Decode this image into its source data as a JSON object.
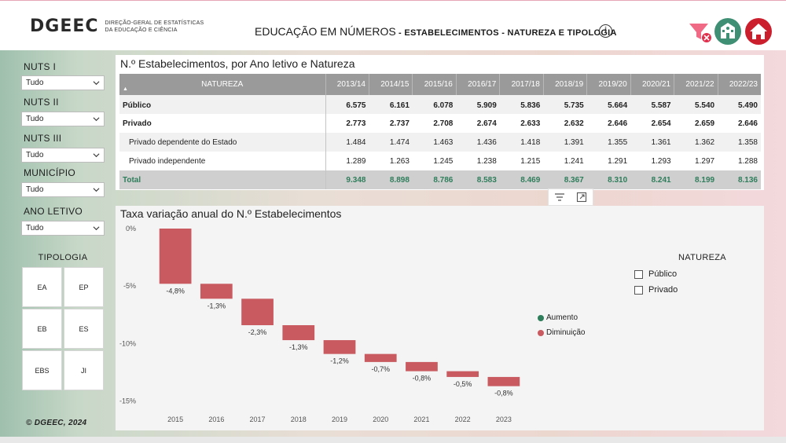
{
  "header": {
    "logo_mark": "DGEEC",
    "logo_line1": "DIREÇÃO-GERAL DE ESTATÍSTICAS",
    "logo_line2": "DA EDUCAÇÃO E CIÊNCIA",
    "title_main": "EDUCAÇÃO EM NÚMEROS",
    "title_sub": " - ESTABELECIMENTOS - NATUREZA  E TIPOLOGIA",
    "info_glyph": "i",
    "icons": [
      "filter-clear-icon",
      "school-icon",
      "home-icon"
    ]
  },
  "filters": [
    {
      "label": "NUTS I",
      "value": "Tudo"
    },
    {
      "label": "NUTS II",
      "value": "Tudo"
    },
    {
      "label": "NUTS III",
      "value": "Tudo"
    },
    {
      "label": "MUNICÍPIO",
      "value": "Tudo"
    },
    {
      "label": "ANO LETIVO",
      "value": "Tudo"
    }
  ],
  "tipologia": {
    "title": "TIPOLOGIA",
    "buttons": [
      "EA",
      "EP",
      "EB",
      "ES",
      "EBS",
      "JI"
    ]
  },
  "copyright": "© DGEEC, 2024",
  "table": {
    "title": "N.º Estabelecimentos, por Ano letivo e Natureza",
    "natureza_header": "NATUREZA",
    "sort_glyph": "▲",
    "years": [
      "2013/14",
      "2014/15",
      "2015/16",
      "2016/17",
      "2017/18",
      "2018/19",
      "2019/20",
      "2020/21",
      "2021/22",
      "2022/23"
    ],
    "rows": [
      {
        "label": "Público",
        "values": [
          "6.575",
          "6.161",
          "6.078",
          "5.909",
          "5.836",
          "5.735",
          "5.664",
          "5.587",
          "5.540",
          "5.490"
        ]
      },
      {
        "label": "Privado",
        "values": [
          "2.773",
          "2.737",
          "2.708",
          "2.674",
          "2.633",
          "2.632",
          "2.646",
          "2.654",
          "2.659",
          "2.646"
        ]
      },
      {
        "label": "Privado dependente do Estado",
        "values": [
          "1.484",
          "1.474",
          "1.463",
          "1.436",
          "1.418",
          "1.391",
          "1.355",
          "1.361",
          "1.362",
          "1.358"
        ]
      },
      {
        "label": "Privado independente",
        "values": [
          "1.289",
          "1.263",
          "1.245",
          "1.238",
          "1.215",
          "1.241",
          "1.291",
          "1.293",
          "1.297",
          "1.288"
        ]
      },
      {
        "label": "Total",
        "values": [
          "9.348",
          "8.898",
          "8.786",
          "8.583",
          "8.469",
          "8.367",
          "8.310",
          "8.241",
          "8.199",
          "8.136"
        ]
      }
    ]
  },
  "chart_data": {
    "type": "waterfall",
    "title": "Taxa variação anual do N.º Estabelecimentos",
    "categories": [
      "2015",
      "2016",
      "2017",
      "2018",
      "2019",
      "2020",
      "2021",
      "2022",
      "2023"
    ],
    "values": [
      -4.8,
      -1.3,
      -2.3,
      -1.3,
      -1.2,
      -0.7,
      -0.8,
      -0.5,
      -0.8
    ],
    "labels": [
      "-4,8%",
      "-1,3%",
      "-2,3%",
      "-1,3%",
      "-1,2%",
      "-0,7%",
      "-0,8%",
      "-0,5%",
      "-0,8%"
    ],
    "y_ticks": [
      0,
      -5,
      -10,
      -15
    ],
    "y_tick_labels": [
      "0%",
      "-5%",
      "-10%",
      "-15%"
    ],
    "ylim": [
      -15.5,
      0
    ],
    "legend": [
      {
        "name": "Aumento",
        "color": "#2e7d5b"
      },
      {
        "name": "Diminuição",
        "color": "#c85a60"
      }
    ],
    "bar_color": "#c85a60"
  },
  "natureza_filter": {
    "title": "NATUREZA",
    "options": [
      "Público",
      "Privado"
    ]
  }
}
